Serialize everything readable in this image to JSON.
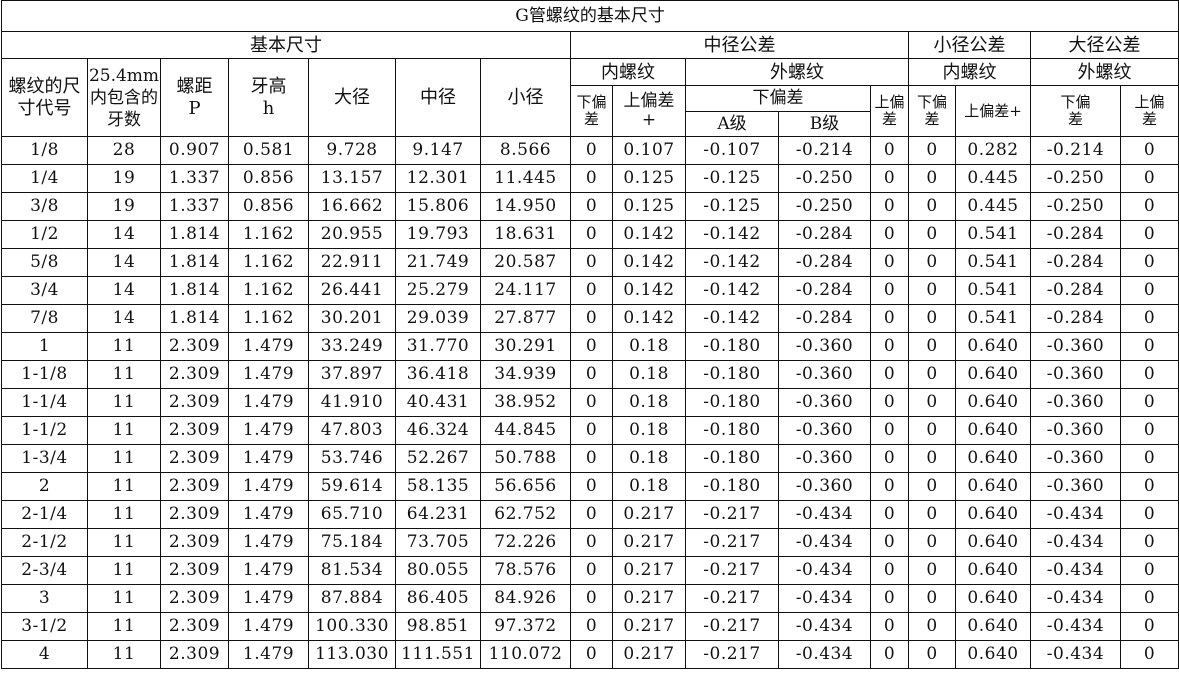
{
  "title": "G管螺纹的基本尺寸",
  "headers": {
    "basic": "基本尺寸",
    "pitch_tol": "中径公差",
    "minor_tol": "小径公差",
    "major_tol": "大径公差",
    "size_code": "螺纹的尺寸代号",
    "threads_per": "25.4mm内包含的牙数",
    "pitch": "螺距P",
    "height": "牙高h",
    "major": "大径",
    "pitch_dia": "中径",
    "minor": "小径",
    "internal": "内螺纹",
    "external": "外螺纹",
    "internal2": "内螺纹",
    "external2": "外螺纹",
    "lower_dev": "下偏差",
    "upper_dev_plus": "上偏差+",
    "lower_dev_span": "下偏差",
    "upper_dev": "上偏差",
    "grade_a": "A级",
    "grade_b": "B级",
    "lower_dev2": "下偏差",
    "upper_dev_plus2": "上偏差+",
    "lower_dev3": "下偏差",
    "upper_dev3": "上偏差"
  },
  "rows": [
    [
      "1/8",
      "28",
      "0.907",
      "0.581",
      "9.728",
      "9.147",
      "8.566",
      "0",
      "0.107",
      "-0.107",
      "-0.214",
      "0",
      "0",
      "0.282",
      "-0.214",
      "0"
    ],
    [
      "1/4",
      "19",
      "1.337",
      "0.856",
      "13.157",
      "12.301",
      "11.445",
      "0",
      "0.125",
      "-0.125",
      "-0.250",
      "0",
      "0",
      "0.445",
      "-0.250",
      "0"
    ],
    [
      "3/8",
      "19",
      "1.337",
      "0.856",
      "16.662",
      "15.806",
      "14.950",
      "0",
      "0.125",
      "-0.125",
      "-0.250",
      "0",
      "0",
      "0.445",
      "-0.250",
      "0"
    ],
    [
      "1/2",
      "14",
      "1.814",
      "1.162",
      "20.955",
      "19.793",
      "18.631",
      "0",
      "0.142",
      "-0.142",
      "-0.284",
      "0",
      "0",
      "0.541",
      "-0.284",
      "0"
    ],
    [
      "5/8",
      "14",
      "1.814",
      "1.162",
      "22.911",
      "21.749",
      "20.587",
      "0",
      "0.142",
      "-0.142",
      "-0.284",
      "0",
      "0",
      "0.541",
      "-0.284",
      "0"
    ],
    [
      "3/4",
      "14",
      "1.814",
      "1.162",
      "26.441",
      "25.279",
      "24.117",
      "0",
      "0.142",
      "-0.142",
      "-0.284",
      "0",
      "0",
      "0.541",
      "-0.284",
      "0"
    ],
    [
      "7/8",
      "14",
      "1.814",
      "1.162",
      "30.201",
      "29.039",
      "27.877",
      "0",
      "0.142",
      "-0.142",
      "-0.284",
      "0",
      "0",
      "0.541",
      "-0.284",
      "0"
    ],
    [
      "1",
      "11",
      "2.309",
      "1.479",
      "33.249",
      "31.770",
      "30.291",
      "0",
      "0.18",
      "-0.180",
      "-0.360",
      "0",
      "0",
      "0.640",
      "-0.360",
      "0"
    ],
    [
      "1-1/8",
      "11",
      "2.309",
      "1.479",
      "37.897",
      "36.418",
      "34.939",
      "0",
      "0.18",
      "-0.180",
      "-0.360",
      "0",
      "0",
      "0.640",
      "-0.360",
      "0"
    ],
    [
      "1-1/4",
      "11",
      "2.309",
      "1.479",
      "41.910",
      "40.431",
      "38.952",
      "0",
      "0.18",
      "-0.180",
      "-0.360",
      "0",
      "0",
      "0.640",
      "-0.360",
      "0"
    ],
    [
      "1-1/2",
      "11",
      "2.309",
      "1.479",
      "47.803",
      "46.324",
      "44.845",
      "0",
      "0.18",
      "-0.180",
      "-0.360",
      "0",
      "0",
      "0.640",
      "-0.360",
      "0"
    ],
    [
      "1-3/4",
      "11",
      "2.309",
      "1.479",
      "53.746",
      "52.267",
      "50.788",
      "0",
      "0.18",
      "-0.180",
      "-0.360",
      "0",
      "0",
      "0.640",
      "-0.360",
      "0"
    ],
    [
      "2",
      "11",
      "2.309",
      "1.479",
      "59.614",
      "58.135",
      "56.656",
      "0",
      "0.18",
      "-0.180",
      "-0.360",
      "0",
      "0",
      "0.640",
      "-0.360",
      "0"
    ],
    [
      "2-1/4",
      "11",
      "2.309",
      "1.479",
      "65.710",
      "64.231",
      "62.752",
      "0",
      "0.217",
      "-0.217",
      "-0.434",
      "0",
      "0",
      "0.640",
      "-0.434",
      "0"
    ],
    [
      "2-1/2",
      "11",
      "2.309",
      "1.479",
      "75.184",
      "73.705",
      "72.226",
      "0",
      "0.217",
      "-0.217",
      "-0.434",
      "0",
      "0",
      "0.640",
      "-0.434",
      "0"
    ],
    [
      "2-3/4",
      "11",
      "2.309",
      "1.479",
      "81.534",
      "80.055",
      "78.576",
      "0",
      "0.217",
      "-0.217",
      "-0.434",
      "0",
      "0",
      "0.640",
      "-0.434",
      "0"
    ],
    [
      "3",
      "11",
      "2.309",
      "1.479",
      "87.884",
      "86.405",
      "84.926",
      "0",
      "0.217",
      "-0.217",
      "-0.434",
      "0",
      "0",
      "0.640",
      "-0.434",
      "0"
    ],
    [
      "3-1/2",
      "11",
      "2.309",
      "1.479",
      "100.330",
      "98.851",
      "97.372",
      "0",
      "0.217",
      "-0.217",
      "-0.434",
      "0",
      "0",
      "0.640",
      "-0.434",
      "0"
    ],
    [
      "4",
      "11",
      "2.309",
      "1.479",
      "113.030",
      "111.551",
      "110.072",
      "0",
      "0.217",
      "-0.217",
      "-0.434",
      "0",
      "0",
      "0.640",
      "-0.434",
      "0"
    ]
  ]
}
